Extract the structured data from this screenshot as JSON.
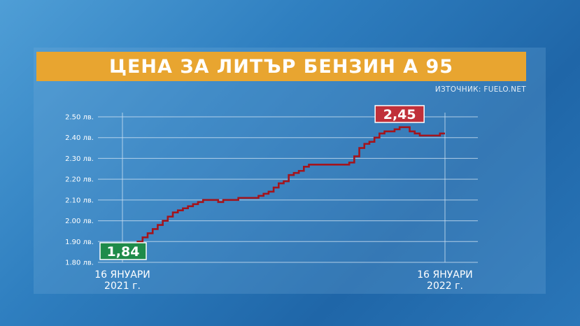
{
  "title": "ЦЕНА ЗА ЛИТЪР БЕНЗИН А 95",
  "source": "ИЗТОЧНИК: FUELO.NET",
  "colors": {
    "accent": "#e8a530",
    "line": "#a3141c",
    "start_badge": "#1f8b4a",
    "end_badge": "#c0303a"
  },
  "chart_data": {
    "type": "line",
    "title": "ЦЕНА ЗА ЛИТЪР БЕНЗИН А 95",
    "ylim": [
      1.8,
      2.5
    ],
    "yticks": [
      1.8,
      1.9,
      2.0,
      2.1,
      2.2,
      2.3,
      2.4,
      2.5
    ],
    "ytick_labels": [
      "1.80 лв.",
      "1.90 лв.",
      "2.00 лв.",
      "2.10 лв.",
      "2.20 лв.",
      "2.30 лв.",
      "2.40 лв.",
      "2.50 лв."
    ],
    "x_labels": [
      {
        "lines": [
          "16 ЯНУАРИ",
          "2021 г."
        ]
      },
      {
        "lines": [
          "16 ЯНУАРИ",
          "2022 г."
        ]
      }
    ],
    "grid": true,
    "series": [
      {
        "values": [
          1.84,
          1.86,
          1.88,
          1.9,
          1.92,
          1.94,
          1.96,
          1.98,
          2.0,
          2.02,
          2.04,
          2.05,
          2.06,
          2.07,
          2.08,
          2.09,
          2.1,
          2.1,
          2.1,
          2.09,
          2.1,
          2.1,
          2.1,
          2.11,
          2.11,
          2.11,
          2.11,
          2.12,
          2.13,
          2.14,
          2.16,
          2.18,
          2.19,
          2.22,
          2.23,
          2.24,
          2.26,
          2.27,
          2.27,
          2.27,
          2.27,
          2.27,
          2.27,
          2.27,
          2.27,
          2.28,
          2.31,
          2.35,
          2.37,
          2.38,
          2.4,
          2.42,
          2.43,
          2.43,
          2.44,
          2.45,
          2.45,
          2.43,
          2.42,
          2.41,
          2.41,
          2.41,
          2.41,
          2.42,
          2.42
        ]
      }
    ],
    "annotations": [
      {
        "text": "1,84",
        "at": "start"
      },
      {
        "text": "2,45",
        "at": "peak"
      }
    ]
  }
}
